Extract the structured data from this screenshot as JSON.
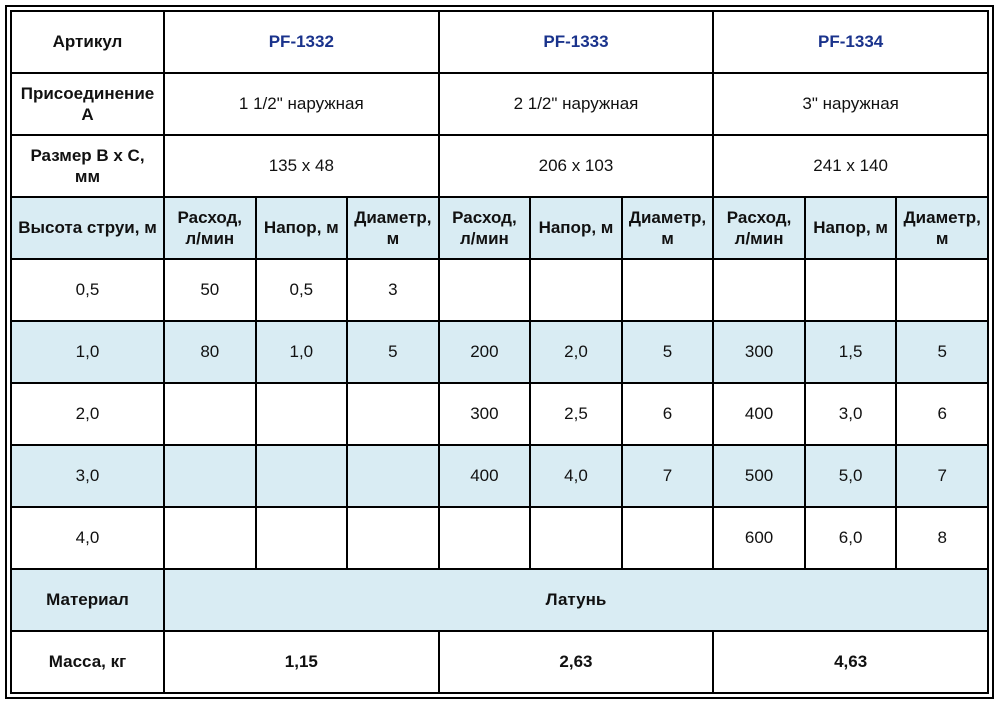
{
  "colors": {
    "accent_blue": "#1a338c",
    "stripe_blue": "#d9ecf3",
    "grid_black": "#000000"
  },
  "table": {
    "article_row": {
      "label": "Артикул",
      "values": [
        "PF-1332",
        "PF-1333",
        "PF-1334"
      ]
    },
    "connection_row": {
      "label": "Присоединение А",
      "values": [
        "1 1/2\" наружная",
        "2 1/2\" наружная",
        "3\" наружная"
      ]
    },
    "size_row": {
      "label": "Размер B x C, мм",
      "values": [
        "135 x 48",
        "206 x 103",
        "241 x 140"
      ]
    },
    "header_row": {
      "label": "Высота струи, м",
      "sub_headers": [
        "Расход, л/мин",
        "Напор, м",
        "Диаметр, м",
        "Расход, л/мин",
        "Напор, м",
        "Диаметр, м",
        "Расход, л/мин",
        "Напор, м",
        "Диаметр, м"
      ]
    },
    "data_rows": [
      {
        "height": "0,5",
        "cells": [
          "50",
          "0,5",
          "3",
          "",
          "",
          "",
          "",
          "",
          ""
        ]
      },
      {
        "height": "1,0",
        "cells": [
          "80",
          "1,0",
          "5",
          "200",
          "2,0",
          "5",
          "300",
          "1,5",
          "5"
        ]
      },
      {
        "height": "2,0",
        "cells": [
          "",
          "",
          "",
          "300",
          "2,5",
          "6",
          "400",
          "3,0",
          "6"
        ]
      },
      {
        "height": "3,0",
        "cells": [
          "",
          "",
          "",
          "400",
          "4,0",
          "7",
          "500",
          "5,0",
          "7"
        ]
      },
      {
        "height": "4,0",
        "cells": [
          "",
          "",
          "",
          "",
          "",
          "",
          "600",
          "6,0",
          "8"
        ]
      }
    ],
    "material_row": {
      "label": "Материал",
      "value": "Латунь"
    },
    "mass_row": {
      "label": "Масса, кг",
      "values": [
        "1,15",
        "2,63",
        "4,63"
      ]
    }
  }
}
